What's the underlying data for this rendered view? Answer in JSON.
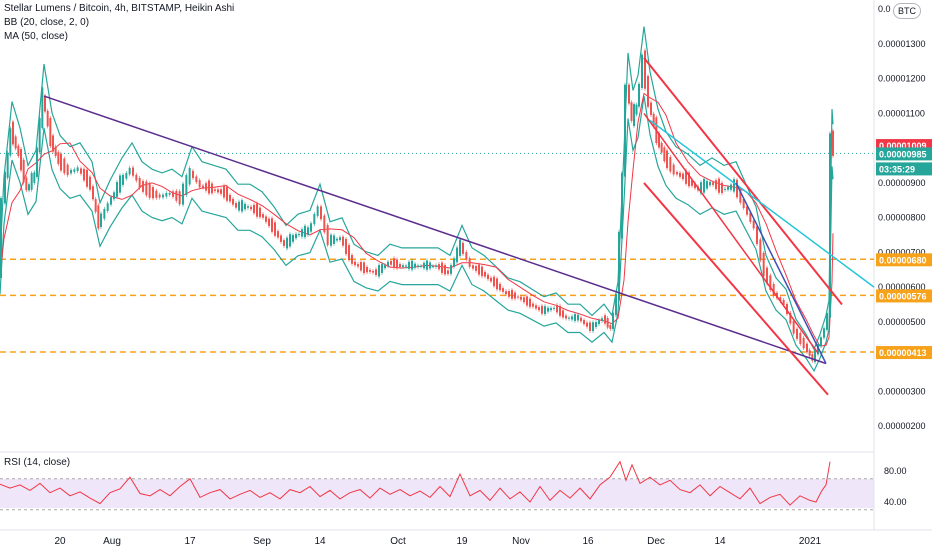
{
  "header": {
    "title": "Stellar Lumens / Bitcoin, 4h, BITSTAMP, Heikin Ashi",
    "bb": "BB (20, close, 2, 0)",
    "ma": "MA (50, close)",
    "currency_badge": "BTC"
  },
  "rsi": {
    "legend": "RSI (14, close)"
  },
  "chart_data": {
    "type": "candlestick",
    "title": "Stellar Lumens / Bitcoin, 4h, BITSTAMP, Heikin Ashi",
    "y_ticks": [
      "0.00001300",
      "0.00001200",
      "0.00001100",
      "0.00001000",
      "0.00000900",
      "0.00000800",
      "0.00000700",
      "0.00000600",
      "0.00000500",
      "0.00000300",
      "0.00000200"
    ],
    "y_top_partial": "0.0",
    "x_ticks": [
      "20",
      "Aug",
      "17",
      "Sep",
      "14",
      "Oct",
      "19",
      "Nov",
      "16",
      "Dec",
      "14",
      "2021"
    ],
    "price_labels": [
      {
        "value": "0.00001009",
        "color": "#f23645"
      },
      {
        "value": "0.00000985",
        "color": "#26a69a"
      },
      {
        "value": "03:35:29",
        "color": "#26a69a"
      },
      {
        "value": "0.00000680",
        "color": "#f7a21b"
      },
      {
        "value": "0.00000576",
        "color": "#f7a21b"
      },
      {
        "value": "0.00000413",
        "color": "#f7a21b"
      }
    ],
    "horizontal_levels": [
      6.8e-06,
      5.76e-06,
      4.13e-06
    ],
    "series": [
      {
        "name": "Price",
        "values": [
          [
            0,
            6.3e-06
          ],
          [
            4,
            8.5e-06
          ],
          [
            12,
            1.05e-05
          ],
          [
            20,
            9.8e-06
          ],
          [
            28,
            8.8e-06
          ],
          [
            36,
            9.2e-06
          ],
          [
            44,
            1.15e-05
          ],
          [
            52,
            1.02e-05
          ],
          [
            60,
            9.6e-06
          ],
          [
            70,
            9.3e-06
          ],
          [
            80,
            9.4e-06
          ],
          [
            92,
            8.9e-06
          ],
          [
            100,
            7.8e-06
          ],
          [
            110,
            8.4e-06
          ],
          [
            122,
            9e-06
          ],
          [
            132,
            9.4e-06
          ],
          [
            142,
            8.9e-06
          ],
          [
            152,
            8.7e-06
          ],
          [
            162,
            8.6e-06
          ],
          [
            172,
            8.7e-06
          ],
          [
            182,
            8.5e-06
          ],
          [
            192,
            9.3e-06
          ],
          [
            202,
            8.9e-06
          ],
          [
            214,
            8.8e-06
          ],
          [
            226,
            8.7e-06
          ],
          [
            238,
            8.3e-06
          ],
          [
            250,
            8.3e-06
          ],
          [
            262,
            8.1e-06
          ],
          [
            274,
            7.7e-06
          ],
          [
            286,
            7.2e-06
          ],
          [
            298,
            7.5e-06
          ],
          [
            310,
            7.6e-06
          ],
          [
            320,
            8.3e-06
          ],
          [
            330,
            7.3e-06
          ],
          [
            342,
            7.4e-06
          ],
          [
            354,
            6.7e-06
          ],
          [
            366,
            6.5e-06
          ],
          [
            378,
            6.4e-06
          ],
          [
            390,
            6.7e-06
          ],
          [
            402,
            6.6e-06
          ],
          [
            414,
            6.6e-06
          ],
          [
            426,
            6.6e-06
          ],
          [
            438,
            6.6e-06
          ],
          [
            450,
            6.4e-06
          ],
          [
            462,
            7.2e-06
          ],
          [
            472,
            6.6e-06
          ],
          [
            484,
            6.4e-06
          ],
          [
            496,
            6.1e-06
          ],
          [
            508,
            5.8e-06
          ],
          [
            520,
            5.7e-06
          ],
          [
            532,
            5.5e-06
          ],
          [
            544,
            5.3e-06
          ],
          [
            556,
            5.4e-06
          ],
          [
            568,
            5.1e-06
          ],
          [
            580,
            5.1e-06
          ],
          [
            592,
            4.8e-06
          ],
          [
            604,
            5.1e-06
          ],
          [
            612,
            4.8e-06
          ],
          [
            618,
            5.7e-06
          ],
          [
            624,
            9.2e-06
          ],
          [
            628,
            1.18e-05
          ],
          [
            633,
            1.08e-05
          ],
          [
            638,
            1.12e-05
          ],
          [
            644,
            1.25e-05
          ],
          [
            650,
            1.13e-05
          ],
          [
            658,
            1.03e-05
          ],
          [
            666,
            9.7e-06
          ],
          [
            676,
            9.3e-06
          ],
          [
            688,
            9.1e-06
          ],
          [
            700,
            8.8e-06
          ],
          [
            712,
            9e-06
          ],
          [
            724,
            8.8e-06
          ],
          [
            736,
            8.9e-06
          ],
          [
            746,
            8.3e-06
          ],
          [
            756,
            7.7e-06
          ],
          [
            766,
            6.4e-06
          ],
          [
            776,
            5.8e-06
          ],
          [
            786,
            5.5e-06
          ],
          [
            796,
            4.7e-06
          ],
          [
            806,
            4.3e-06
          ],
          [
            814,
            3.9e-06
          ],
          [
            820,
            4.3e-06
          ],
          [
            826,
            4.8e-06
          ],
          [
            829,
            5.2e-06
          ],
          [
            832,
            1.03e-05
          ],
          [
            833,
            9.9e-06
          ]
        ]
      },
      {
        "name": "RSI",
        "values": [
          [
            0,
            63
          ],
          [
            10,
            58
          ],
          [
            20,
            62
          ],
          [
            30,
            55
          ],
          [
            40,
            64
          ],
          [
            50,
            52
          ],
          [
            60,
            58
          ],
          [
            70,
            48
          ],
          [
            80,
            53
          ],
          [
            90,
            45
          ],
          [
            100,
            38
          ],
          [
            110,
            52
          ],
          [
            120,
            57
          ],
          [
            130,
            72
          ],
          [
            140,
            51
          ],
          [
            150,
            48
          ],
          [
            160,
            56
          ],
          [
            170,
            48
          ],
          [
            180,
            60
          ],
          [
            190,
            70
          ],
          [
            200,
            46
          ],
          [
            210,
            52
          ],
          [
            220,
            56
          ],
          [
            230,
            44
          ],
          [
            240,
            50
          ],
          [
            250,
            55
          ],
          [
            260,
            46
          ],
          [
            270,
            52
          ],
          [
            280,
            44
          ],
          [
            290,
            56
          ],
          [
            300,
            52
          ],
          [
            310,
            60
          ],
          [
            320,
            47
          ],
          [
            330,
            55
          ],
          [
            340,
            44
          ],
          [
            350,
            52
          ],
          [
            360,
            56
          ],
          [
            370,
            45
          ],
          [
            380,
            58
          ],
          [
            390,
            50
          ],
          [
            400,
            56
          ],
          [
            410,
            48
          ],
          [
            420,
            54
          ],
          [
            430,
            46
          ],
          [
            440,
            60
          ],
          [
            450,
            47
          ],
          [
            460,
            76
          ],
          [
            470,
            48
          ],
          [
            480,
            55
          ],
          [
            490,
            42
          ],
          [
            500,
            58
          ],
          [
            510,
            44
          ],
          [
            520,
            53
          ],
          [
            530,
            40
          ],
          [
            540,
            60
          ],
          [
            550,
            42
          ],
          [
            560,
            55
          ],
          [
            570,
            45
          ],
          [
            580,
            58
          ],
          [
            590,
            44
          ],
          [
            600,
            62
          ],
          [
            610,
            72
          ],
          [
            620,
            92
          ],
          [
            626,
            68
          ],
          [
            632,
            88
          ],
          [
            640,
            64
          ],
          [
            650,
            72
          ],
          [
            660,
            62
          ],
          [
            670,
            68
          ],
          [
            680,
            56
          ],
          [
            690,
            52
          ],
          [
            700,
            62
          ],
          [
            710,
            48
          ],
          [
            720,
            60
          ],
          [
            730,
            52
          ],
          [
            740,
            44
          ],
          [
            750,
            58
          ],
          [
            760,
            38
          ],
          [
            770,
            46
          ],
          [
            780,
            50
          ],
          [
            790,
            36
          ],
          [
            800,
            48
          ],
          [
            810,
            42
          ],
          [
            816,
            40
          ],
          [
            822,
            55
          ],
          [
            826,
            62
          ],
          [
            830,
            92
          ]
        ]
      }
    ],
    "rsi_ticks": [
      "80.00",
      "40.00"
    ]
  }
}
